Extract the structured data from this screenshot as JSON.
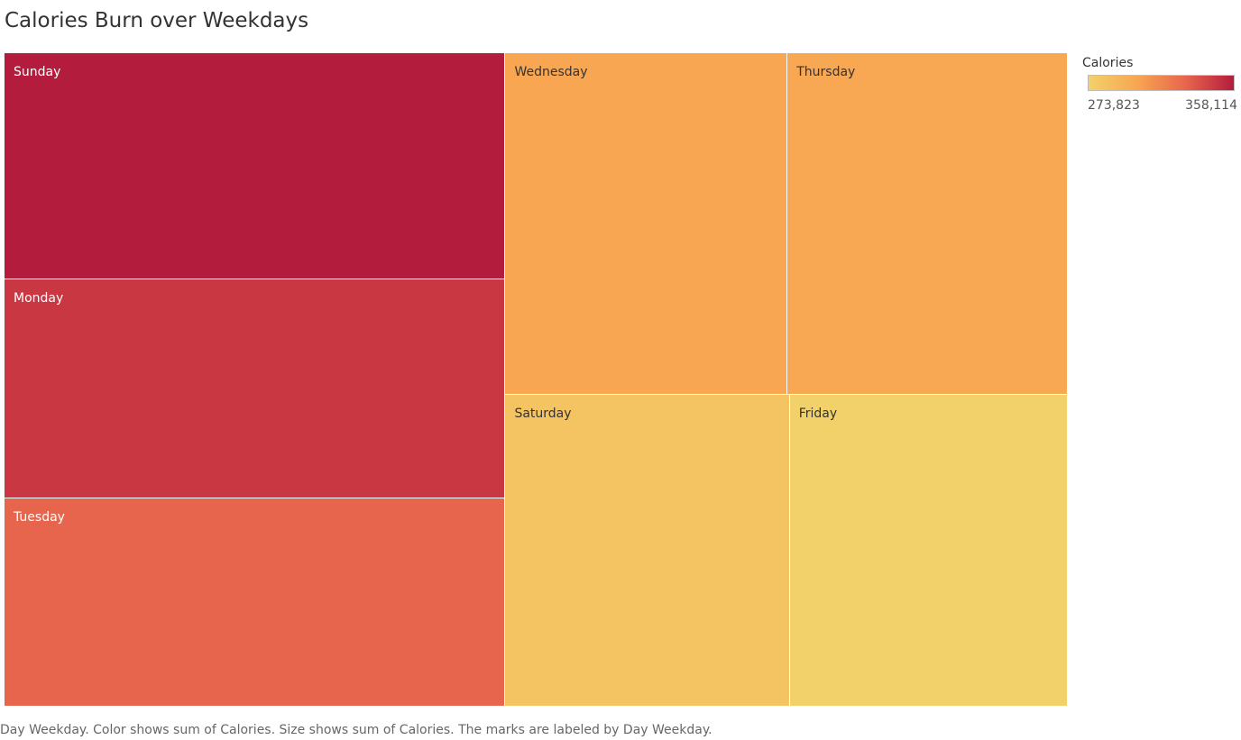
{
  "chart_data": {
    "type": "treemap",
    "title": "Calories Burn over Weekdays",
    "items": [
      {
        "label": "Sunday",
        "value": 358114,
        "color": "#b41c3d",
        "text_color": "#ffffff"
      },
      {
        "label": "Monday",
        "value": 346800,
        "color": "#c83742",
        "text_color": "#ffffff"
      },
      {
        "label": "Tuesday",
        "value": 330000,
        "color": "#e8654d",
        "text_color": "#ffffff"
      },
      {
        "label": "Wednesday",
        "value": 305000,
        "color": "#f8a652",
        "text_color": "#333333"
      },
      {
        "label": "Thursday",
        "value": 303000,
        "color": "#f8a752",
        "text_color": "#333333"
      },
      {
        "label": "Saturday",
        "value": 280000,
        "color": "#f4c463",
        "text_color": "#333333"
      },
      {
        "label": "Friday",
        "value": 273823,
        "color": "#f3d16a",
        "text_color": "#333333"
      }
    ],
    "legend": {
      "title": "Calories",
      "min": "273,823",
      "max": "358,114",
      "placement": "top-right",
      "gradient": [
        "#f3d16a",
        "#f8a652",
        "#e8654d",
        "#b41c3d"
      ]
    },
    "caption": "Day Weekday.  Color shows sum of Calories.  Size shows sum of Calories.  The marks are labeled by Day Weekday."
  }
}
